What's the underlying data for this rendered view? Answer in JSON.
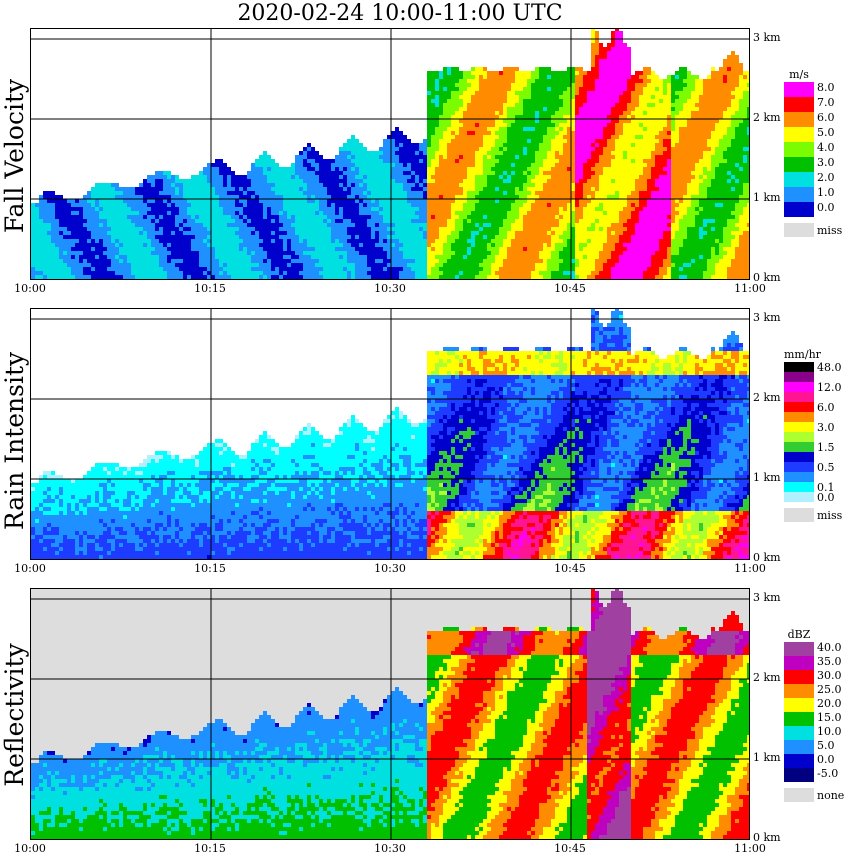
{
  "title": "2020-02-24   10:00-11:00 UTC",
  "x_ticks": [
    "10:00",
    "10:15",
    "10:30",
    "10:45",
    "11:00"
  ],
  "y_ticks": [
    "3 km",
    "2 km",
    "1 km",
    "0 km"
  ],
  "colors": {
    "grid": "#000000",
    "missing": "#dddddd"
  },
  "chart_data": [
    {
      "type": "heatmap",
      "panel": "fall_velocity",
      "title": "Fall Velocity",
      "x": [
        "10:00",
        "10:15",
        "10:30",
        "10:45",
        "11:00"
      ],
      "ylim": [
        0,
        3.2
      ],
      "legend_unit": "m/s",
      "legend": [
        {
          "label": "8.0",
          "color": "#ff00ff"
        },
        {
          "label": "7.0",
          "color": "#ff0000"
        },
        {
          "label": "6.0",
          "color": "#ff8c00"
        },
        {
          "label": "5.0",
          "color": "#ffff00"
        },
        {
          "label": "4.0",
          "color": "#7cfc00"
        },
        {
          "label": "3.0",
          "color": "#00c000"
        },
        {
          "label": "2.0",
          "color": "#00e0e0"
        },
        {
          "label": "1.0",
          "color": "#1e90ff"
        },
        {
          "label": "0.0",
          "color": "#0000cd"
        }
      ],
      "missing_label": "miss",
      "background": "#ffffff"
    },
    {
      "type": "heatmap",
      "panel": "rain_intensity",
      "title": "Rain Intensity",
      "x": [
        "10:00",
        "10:15",
        "10:30",
        "10:45",
        "11:00"
      ],
      "ylim": [
        0,
        3.2
      ],
      "legend_unit": "mm/hr",
      "legend": [
        {
          "label": "48.0",
          "color": "#000000"
        },
        {
          "label": "",
          "color": "#8b008b"
        },
        {
          "label": "12.0",
          "color": "#ff00ff"
        },
        {
          "label": "",
          "color": "#ff1493"
        },
        {
          "label": "6.0",
          "color": "#ff0000"
        },
        {
          "label": "",
          "color": "#ff8c00"
        },
        {
          "label": "3.0",
          "color": "#ffff00"
        },
        {
          "label": "",
          "color": "#adff2f"
        },
        {
          "label": "1.5",
          "color": "#32cd32"
        },
        {
          "label": "",
          "color": "#0000cd"
        },
        {
          "label": "0.5",
          "color": "#1e3cff"
        },
        {
          "label": "",
          "color": "#1e90ff"
        },
        {
          "label": "0.1",
          "color": "#00ffff"
        },
        {
          "label": "0.0",
          "color": "#b0f0ff"
        }
      ],
      "missing_label": "miss",
      "background": "#ffffff"
    },
    {
      "type": "heatmap",
      "panel": "reflectivity",
      "title": "Reflectivity",
      "x": [
        "10:00",
        "10:15",
        "10:30",
        "10:45",
        "11:00"
      ],
      "ylim": [
        0,
        3.2
      ],
      "legend_unit": "dBZ",
      "legend": [
        {
          "label": "40.0",
          "color": "#a040a0"
        },
        {
          "label": "35.0",
          "color": "#c000c0"
        },
        {
          "label": "30.0",
          "color": "#ff0000"
        },
        {
          "label": "25.0",
          "color": "#ff8c00"
        },
        {
          "label": "20.0",
          "color": "#ffff00"
        },
        {
          "label": "15.0",
          "color": "#00c000"
        },
        {
          "label": "10.0",
          "color": "#00e0e0"
        },
        {
          "label": "5.0",
          "color": "#1e90ff"
        },
        {
          "label": "0.0",
          "color": "#0000cd"
        },
        {
          "label": "-5.0",
          "color": "#000080"
        }
      ],
      "missing_label": "none",
      "background": "#dddddd"
    }
  ]
}
